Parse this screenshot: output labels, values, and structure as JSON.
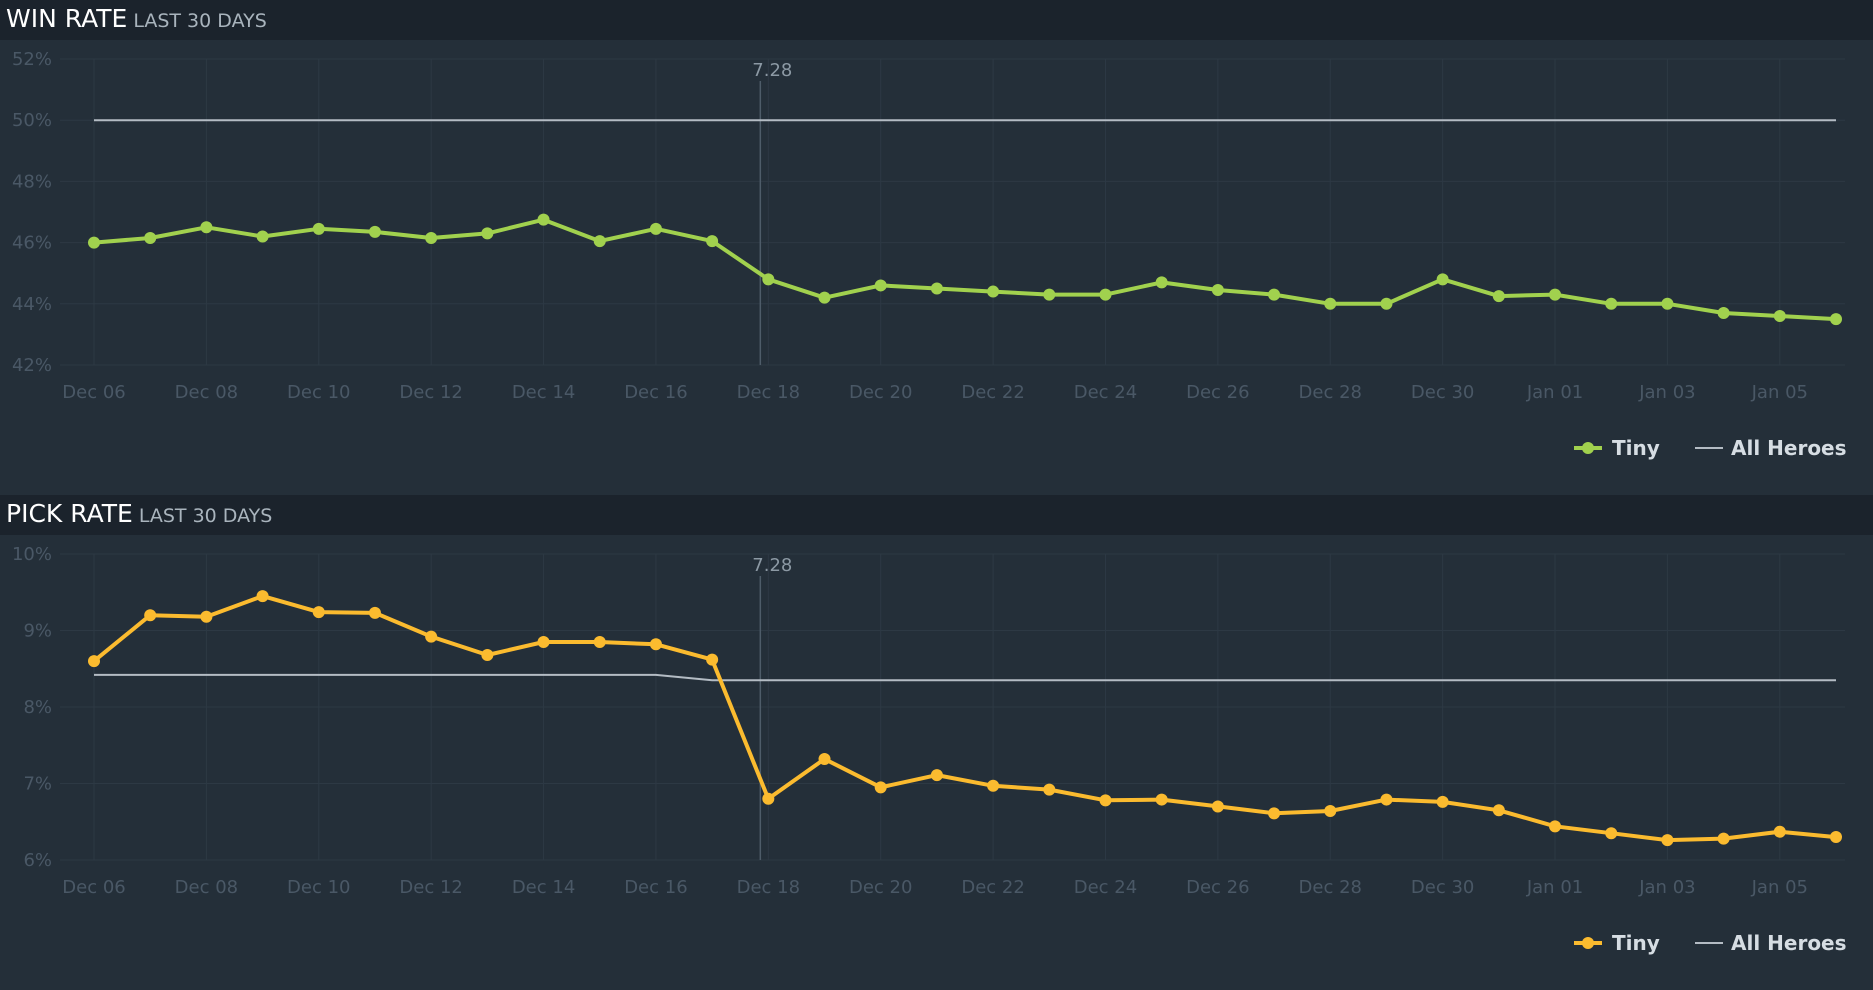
{
  "charts": [
    {
      "title": "WIN RATE",
      "subtitle": "LAST 30 DAYS",
      "patch_label": "7.28",
      "legend": [
        {
          "label": "Tiny",
          "type": "line-marker"
        },
        {
          "label": "All Heroes",
          "type": "line"
        }
      ]
    },
    {
      "title": "PICK RATE",
      "subtitle": "LAST 30 DAYS",
      "patch_label": "7.28",
      "legend": [
        {
          "label": "Tiny",
          "type": "line-marker"
        },
        {
          "label": "All Heroes",
          "type": "line"
        }
      ]
    }
  ],
  "chart_data": [
    {
      "type": "line",
      "title": "WIN RATE",
      "subtitle": "LAST 30 DAYS",
      "x": [
        "Dec 06",
        "Dec 07",
        "Dec 08",
        "Dec 09",
        "Dec 10",
        "Dec 11",
        "Dec 12",
        "Dec 13",
        "Dec 14",
        "Dec 15",
        "Dec 16",
        "Dec 17",
        "Dec 18",
        "Dec 19",
        "Dec 20",
        "Dec 21",
        "Dec 22",
        "Dec 23",
        "Dec 24",
        "Dec 25",
        "Dec 26",
        "Dec 27",
        "Dec 28",
        "Dec 29",
        "Dec 30",
        "Dec 31",
        "Jan 01",
        "Jan 02",
        "Jan 03",
        "Jan 04",
        "Jan 05",
        "Jan 06"
      ],
      "x_tick_labels": [
        "Dec 06",
        "Dec 08",
        "Dec 10",
        "Dec 12",
        "Dec 14",
        "Dec 16",
        "Dec 18",
        "Dec 20",
        "Dec 22",
        "Dec 24",
        "Dec 26",
        "Dec 28",
        "Dec 30",
        "Jan 01",
        "Jan 03",
        "Jan 05"
      ],
      "y_tick_labels": [
        "52%",
        "50%",
        "48%",
        "46%",
        "44%",
        "42%"
      ],
      "ylim": [
        42,
        52
      ],
      "grid": true,
      "legend_position": "bottom-right",
      "annotation": {
        "x": "Dec 18",
        "label": "7.28"
      },
      "colors": {
        "Tiny": "#a1d14e",
        "All Heroes": "#b4bcc4"
      },
      "series": [
        {
          "name": "Tiny",
          "values": [
            46.0,
            46.15,
            46.5,
            46.2,
            46.45,
            46.35,
            46.15,
            46.3,
            46.75,
            46.05,
            46.45,
            46.05,
            44.8,
            44.2,
            44.6,
            44.5,
            44.4,
            44.3,
            44.3,
            44.7,
            44.45,
            44.3,
            44.0,
            44.0,
            44.8,
            44.25,
            44.3,
            44.0,
            44.0,
            43.7,
            43.6,
            43.5
          ]
        },
        {
          "name": "All Heroes",
          "values": [
            50,
            50,
            50,
            50,
            50,
            50,
            50,
            50,
            50,
            50,
            50,
            50,
            50,
            50,
            50,
            50,
            50,
            50,
            50,
            50,
            50,
            50,
            50,
            50,
            50,
            50,
            50,
            50,
            50,
            50,
            50,
            50
          ]
        }
      ]
    },
    {
      "type": "line",
      "title": "PICK RATE",
      "subtitle": "LAST 30 DAYS",
      "x": [
        "Dec 06",
        "Dec 07",
        "Dec 08",
        "Dec 09",
        "Dec 10",
        "Dec 11",
        "Dec 12",
        "Dec 13",
        "Dec 14",
        "Dec 15",
        "Dec 16",
        "Dec 17",
        "Dec 18",
        "Dec 19",
        "Dec 20",
        "Dec 21",
        "Dec 22",
        "Dec 23",
        "Dec 24",
        "Dec 25",
        "Dec 26",
        "Dec 27",
        "Dec 28",
        "Dec 29",
        "Dec 30",
        "Dec 31",
        "Jan 01",
        "Jan 02",
        "Jan 03",
        "Jan 04",
        "Jan 05",
        "Jan 06"
      ],
      "x_tick_labels": [
        "Dec 06",
        "Dec 08",
        "Dec 10",
        "Dec 12",
        "Dec 14",
        "Dec 16",
        "Dec 18",
        "Dec 20",
        "Dec 22",
        "Dec 24",
        "Dec 26",
        "Dec 28",
        "Dec 30",
        "Jan 01",
        "Jan 03",
        "Jan 05"
      ],
      "y_tick_labels": [
        "10%",
        "9%",
        "8%",
        "7%",
        "6%"
      ],
      "ylim": [
        6,
        10
      ],
      "grid": true,
      "legend_position": "bottom-right",
      "annotation": {
        "x": "Dec 18",
        "label": "7.28"
      },
      "colors": {
        "Tiny": "#fbbb2f",
        "All Heroes": "#b4bcc4"
      },
      "series": [
        {
          "name": "Tiny",
          "values": [
            8.6,
            9.2,
            9.18,
            9.45,
            9.24,
            9.23,
            8.92,
            8.68,
            8.85,
            8.85,
            8.82,
            8.62,
            6.8,
            7.32,
            6.95,
            7.11,
            6.97,
            6.92,
            6.78,
            6.79,
            6.7,
            6.61,
            6.64,
            6.79,
            6.76,
            6.65,
            6.44,
            6.35,
            6.26,
            6.28,
            6.37,
            6.3
          ]
        },
        {
          "name": "All Heroes",
          "values": [
            8.42,
            8.42,
            8.42,
            8.42,
            8.42,
            8.42,
            8.42,
            8.42,
            8.42,
            8.42,
            8.42,
            8.35,
            8.35,
            8.35,
            8.35,
            8.35,
            8.35,
            8.35,
            8.35,
            8.35,
            8.35,
            8.35,
            8.35,
            8.35,
            8.35,
            8.35,
            8.35,
            8.35,
            8.35,
            8.35,
            8.35,
            8.35
          ]
        }
      ]
    }
  ]
}
